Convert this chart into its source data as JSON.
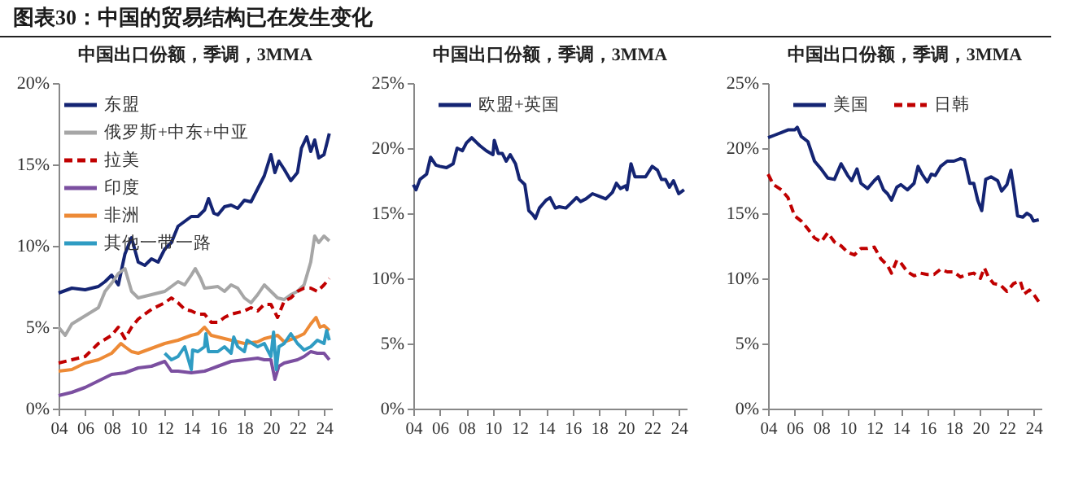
{
  "chart_data": [
    {
      "type": "line",
      "title": "中国出口份额，季调，3MMA",
      "annotations": [
        "图表30：中国的贸易结构已在发生变化"
      ],
      "xlim": [
        2004,
        2024.6
      ],
      "xticks": [
        {
          "value": 2004,
          "label": "04"
        },
        {
          "value": 2006,
          "label": "06"
        },
        {
          "value": 2008,
          "label": "08"
        },
        {
          "value": 2010,
          "label": "10"
        },
        {
          "value": 2012,
          "label": "12"
        },
        {
          "value": 2014,
          "label": "14"
        },
        {
          "value": 2016,
          "label": "16"
        },
        {
          "value": 2018,
          "label": "18"
        },
        {
          "value": 2020,
          "label": "20"
        },
        {
          "value": 2022,
          "label": "22"
        },
        {
          "value": 2024,
          "label": "24"
        }
      ],
      "ylim": [
        0,
        20
      ],
      "yticks": [
        {
          "value": 0,
          "label": "0%"
        },
        {
          "value": 5,
          "label": "5%"
        },
        {
          "value": 10,
          "label": "10%"
        },
        {
          "value": 15,
          "label": "15%"
        },
        {
          "value": 20,
          "label": "20%"
        }
      ],
      "legend": "top left",
      "grid": false,
      "series": [
        {
          "name": "东盟",
          "color": "#142473",
          "x": [
            2004,
            2005,
            2006,
            2007,
            2007.5,
            2008,
            2008.5,
            2009,
            2009.5,
            2010,
            2010.5,
            2011,
            2011.5,
            2012,
            2012.5,
            2013,
            2013.5,
            2014,
            2014.5,
            2015,
            2015.3,
            2015.7,
            2016,
            2016.5,
            2017,
            2017.5,
            2018,
            2018.5,
            2019,
            2019.5,
            2020,
            2020.3,
            2020.6,
            2021,
            2021.5,
            2022,
            2022.3,
            2022.7,
            2023,
            2023.3,
            2023.6,
            2024,
            2024.4
          ],
          "values": [
            7.1,
            7.4,
            7.3,
            7.5,
            7.8,
            8.2,
            7.6,
            9.5,
            10.5,
            9.0,
            8.8,
            9.2,
            9.0,
            9.8,
            10.2,
            11.2,
            11.5,
            11.8,
            11.8,
            12.2,
            12.9,
            12.0,
            11.9,
            12.4,
            12.5,
            12.3,
            12.8,
            12.7,
            13.5,
            14.3,
            15.6,
            14.5,
            15.2,
            14.7,
            14.0,
            14.5,
            16.0,
            16.7,
            15.8,
            16.5,
            15.4,
            15.6,
            16.9
          ]
        },
        {
          "name": "俄罗斯+中东+中亚",
          "color": "#a6a6a6",
          "x": [
            2004,
            2004.5,
            2005,
            2006,
            2007,
            2007.5,
            2008,
            2008.5,
            2009,
            2009.5,
            2010,
            2011,
            2012,
            2012.5,
            2013,
            2013.5,
            2014,
            2014.3,
            2014.7,
            2015,
            2016,
            2016.5,
            2017,
            2017.5,
            2018,
            2018.5,
            2019,
            2019.5,
            2020,
            2020.5,
            2021,
            2021.5,
            2022,
            2022.5,
            2023,
            2023.3,
            2023.6,
            2024,
            2024.4
          ],
          "values": [
            5.0,
            4.5,
            5.2,
            5.7,
            6.2,
            7.2,
            7.7,
            8.3,
            8.6,
            7.2,
            6.8,
            7.0,
            7.2,
            7.5,
            7.8,
            7.6,
            8.2,
            8.6,
            8.0,
            7.4,
            7.5,
            7.2,
            7.6,
            7.4,
            6.8,
            6.5,
            7.0,
            7.6,
            7.2,
            6.8,
            6.7,
            7.0,
            7.2,
            7.6,
            9.0,
            10.6,
            10.2,
            10.6,
            10.3
          ]
        },
        {
          "name": "拉美",
          "color": "#c00000",
          "line_style": "dashed",
          "x": [
            2004,
            2005,
            2006,
            2007,
            2008,
            2008.5,
            2009,
            2009.5,
            2010,
            2011,
            2012,
            2012.5,
            2013,
            2013.5,
            2014,
            2014.5,
            2015,
            2015.5,
            2016,
            2016.5,
            2017,
            2018,
            2018.5,
            2019,
            2019.5,
            2020,
            2020.5,
            2021,
            2021.5,
            2022,
            2022.5,
            2023,
            2023.5,
            2024,
            2024.4
          ],
          "values": [
            2.8,
            3.0,
            3.2,
            4.0,
            4.5,
            5.0,
            4.3,
            5.0,
            5.5,
            6.1,
            6.5,
            6.8,
            6.5,
            6.1,
            6.0,
            5.8,
            5.8,
            5.3,
            5.3,
            5.6,
            5.8,
            6.0,
            6.2,
            6.0,
            6.4,
            6.4,
            5.6,
            6.6,
            6.8,
            7.2,
            7.4,
            7.4,
            7.2,
            7.6,
            8.0
          ]
        },
        {
          "name": "印度",
          "color": "#7b4fa0",
          "x": [
            2004,
            2005,
            2006,
            2007,
            2008,
            2009,
            2010,
            2011,
            2012,
            2012.5,
            2013,
            2014,
            2015,
            2016,
            2017,
            2018,
            2019,
            2019.5,
            2020,
            2020.3,
            2020.6,
            2021,
            2022,
            2022.5,
            2023,
            2023.5,
            2024,
            2024.4
          ],
          "values": [
            0.8,
            1.0,
            1.3,
            1.7,
            2.1,
            2.2,
            2.5,
            2.6,
            2.9,
            2.3,
            2.3,
            2.2,
            2.3,
            2.6,
            2.9,
            3.0,
            3.1,
            3.0,
            3.0,
            1.8,
            2.6,
            2.8,
            3.0,
            3.2,
            3.5,
            3.4,
            3.4,
            3.0
          ]
        },
        {
          "name": "非洲",
          "color": "#ed8a36",
          "x": [
            2004,
            2005,
            2006,
            2007,
            2008,
            2008.7,
            2009,
            2009.5,
            2010,
            2011,
            2012,
            2013,
            2014,
            2014.5,
            2015,
            2015.5,
            2016,
            2017,
            2018,
            2019,
            2019.5,
            2020,
            2020.5,
            2021,
            2022,
            2022.5,
            2023,
            2023.4,
            2023.7,
            2024,
            2024.4
          ],
          "values": [
            2.3,
            2.4,
            2.8,
            3.0,
            3.4,
            4.0,
            3.8,
            3.5,
            3.4,
            3.7,
            4.0,
            4.2,
            4.5,
            4.6,
            5.0,
            4.5,
            4.4,
            4.2,
            4.0,
            4.1,
            4.3,
            4.4,
            4.5,
            4.1,
            4.4,
            4.6,
            5.2,
            5.6,
            5.0,
            5.1,
            4.8
          ]
        },
        {
          "name": "其他一带一路",
          "color": "#2f9cc3",
          "x": [
            2012,
            2012.5,
            2013,
            2013.5,
            2014,
            2014.1,
            2014.5,
            2015,
            2015.1,
            2015.3,
            2016,
            2016.5,
            2017,
            2017.2,
            2017.5,
            2018,
            2018.2,
            2019,
            2019.5,
            2020,
            2020.2,
            2020.4,
            2020.6,
            2021,
            2021.5,
            2022,
            2022.5,
            2023,
            2023.5,
            2024,
            2024.2,
            2024.4
          ],
          "values": [
            3.4,
            3.0,
            3.2,
            3.8,
            2.4,
            3.6,
            3.5,
            3.8,
            4.6,
            3.5,
            3.5,
            3.8,
            3.4,
            4.4,
            3.8,
            3.5,
            4.2,
            3.8,
            4.0,
            3.2,
            4.7,
            2.4,
            3.8,
            4.0,
            4.6,
            4.0,
            3.6,
            3.8,
            4.2,
            4.0,
            4.8,
            4.2
          ]
        }
      ]
    },
    {
      "type": "line",
      "title": "中国出口份额，季调，3MMA",
      "xlim": [
        2004,
        2024.6
      ],
      "xticks": [
        {
          "value": 2004,
          "label": "04"
        },
        {
          "value": 2006,
          "label": "06"
        },
        {
          "value": 2008,
          "label": "08"
        },
        {
          "value": 2010,
          "label": "10"
        },
        {
          "value": 2012,
          "label": "12"
        },
        {
          "value": 2014,
          "label": "14"
        },
        {
          "value": 2016,
          "label": "16"
        },
        {
          "value": 2018,
          "label": "18"
        },
        {
          "value": 2020,
          "label": "20"
        },
        {
          "value": 2022,
          "label": "22"
        },
        {
          "value": 2024,
          "label": "24"
        }
      ],
      "ylim": [
        0,
        25
      ],
      "yticks": [
        {
          "value": 0,
          "label": "0%"
        },
        {
          "value": 5,
          "label": "5%"
        },
        {
          "value": 10,
          "label": "10%"
        },
        {
          "value": 15,
          "label": "15%"
        },
        {
          "value": 20,
          "label": "20%"
        },
        {
          "value": 25,
          "label": "25%"
        }
      ],
      "legend": "top",
      "grid": false,
      "series": [
        {
          "name": "欧盟+英国",
          "color": "#142473",
          "x": [
            2004,
            2004.2,
            2004.5,
            2005,
            2005.3,
            2005.7,
            2006,
            2006.5,
            2007,
            2007.3,
            2007.7,
            2008,
            2008.4,
            2008.8,
            2009,
            2009.5,
            2010,
            2010.1,
            2010.4,
            2010.7,
            2011,
            2011.3,
            2011.7,
            2012,
            2012.4,
            2012.7,
            2013,
            2013.2,
            2013.5,
            2014,
            2014.3,
            2014.7,
            2015,
            2015.5,
            2016,
            2016.3,
            2016.6,
            2017,
            2017.5,
            2018,
            2018.5,
            2019,
            2019.3,
            2019.6,
            2020,
            2020.1,
            2020.4,
            2020.7,
            2021,
            2021.5,
            2022,
            2022.4,
            2022.7,
            2023,
            2023.3,
            2023.6,
            2024,
            2024.4
          ],
          "values": [
            17.2,
            16.8,
            17.6,
            18.0,
            19.3,
            18.7,
            18.6,
            18.5,
            18.8,
            20.0,
            19.8,
            20.4,
            20.8,
            20.4,
            20.2,
            19.8,
            19.5,
            20.6,
            19.6,
            19.6,
            19.0,
            19.5,
            18.8,
            17.6,
            17.2,
            15.2,
            14.9,
            14.6,
            15.4,
            16.0,
            16.2,
            15.4,
            15.5,
            15.4,
            15.9,
            16.2,
            15.9,
            16.1,
            16.5,
            16.3,
            16.1,
            16.6,
            17.3,
            16.9,
            17.1,
            16.8,
            18.8,
            17.8,
            17.8,
            17.8,
            18.6,
            18.3,
            17.6,
            17.6,
            17.0,
            17.5,
            16.5,
            16.8
          ]
        }
      ]
    },
    {
      "type": "line",
      "title": "中国出口份额，季调，3MMA",
      "xlim": [
        2004,
        2024.6
      ],
      "xticks": [
        {
          "value": 2004,
          "label": "04"
        },
        {
          "value": 2006,
          "label": "06"
        },
        {
          "value": 2008,
          "label": "08"
        },
        {
          "value": 2010,
          "label": "10"
        },
        {
          "value": 2012,
          "label": "12"
        },
        {
          "value": 2014,
          "label": "14"
        },
        {
          "value": 2016,
          "label": "16"
        },
        {
          "value": 2018,
          "label": "18"
        },
        {
          "value": 2020,
          "label": "20"
        },
        {
          "value": 2022,
          "label": "22"
        },
        {
          "value": 2024,
          "label": "24"
        }
      ],
      "ylim": [
        0,
        25
      ],
      "yticks": [
        {
          "value": 0,
          "label": "0%"
        },
        {
          "value": 5,
          "label": "5%"
        },
        {
          "value": 10,
          "label": "10%"
        },
        {
          "value": 15,
          "label": "15%"
        },
        {
          "value": 20,
          "label": "20%"
        },
        {
          "value": 25,
          "label": "25%"
        }
      ],
      "legend": "top",
      "grid": false,
      "series": [
        {
          "name": "美国",
          "color": "#142473",
          "x": [
            2004,
            2004.5,
            2005,
            2005.5,
            2006,
            2006.2,
            2006.5,
            2007,
            2007.5,
            2008,
            2008.5,
            2009,
            2009.5,
            2010,
            2010.3,
            2010.7,
            2011,
            2011.5,
            2012,
            2012.3,
            2012.7,
            2013,
            2013.3,
            2013.7,
            2014,
            2014.5,
            2015,
            2015.3,
            2015.6,
            2016,
            2016.3,
            2016.6,
            2017,
            2017.5,
            2018,
            2018.5,
            2018.8,
            2019.2,
            2019.5,
            2019.8,
            2020.1,
            2020.4,
            2020.8,
            2021.3,
            2021.6,
            2022,
            2022.3,
            2022.5,
            2022.8,
            2023.2,
            2023.5,
            2023.8,
            2024,
            2024.4
          ],
          "values": [
            20.8,
            21.0,
            21.2,
            21.4,
            21.4,
            21.6,
            20.9,
            20.5,
            19.0,
            18.4,
            17.7,
            17.6,
            18.8,
            17.9,
            17.5,
            18.4,
            17.3,
            16.9,
            17.5,
            17.8,
            16.8,
            16.5,
            16.0,
            17.0,
            17.2,
            16.8,
            17.3,
            18.6,
            18.0,
            17.4,
            18.0,
            17.9,
            18.6,
            19.0,
            19.0,
            19.2,
            19.1,
            17.3,
            17.3,
            16.0,
            15.2,
            17.6,
            17.8,
            17.5,
            16.7,
            17.2,
            18.3,
            17.0,
            14.8,
            14.7,
            15.0,
            14.8,
            14.4,
            14.5
          ]
        },
        {
          "name": "日韩",
          "color": "#c00000",
          "line_style": "dashed",
          "x": [
            2004,
            2004.4,
            2005,
            2005.5,
            2006,
            2006.5,
            2007,
            2007.5,
            2008,
            2008.5,
            2009,
            2009.5,
            2010,
            2010.5,
            2011,
            2011.5,
            2012,
            2012.5,
            2013,
            2013.3,
            2013.7,
            2014,
            2014.5,
            2015,
            2015.5,
            2016,
            2016.5,
            2017,
            2017.5,
            2018,
            2018.5,
            2019,
            2019.5,
            2020,
            2020.3,
            2020.6,
            2021,
            2021.5,
            2022,
            2022.5,
            2023,
            2023.3,
            2023.7,
            2024,
            2024.4
          ],
          "values": [
            18.0,
            17.2,
            16.8,
            16.2,
            14.8,
            14.4,
            13.8,
            13.1,
            12.8,
            13.5,
            12.8,
            12.5,
            12.0,
            11.8,
            12.3,
            12.3,
            12.4,
            11.5,
            11.0,
            10.4,
            11.4,
            11.2,
            10.5,
            10.2,
            10.4,
            10.3,
            10.3,
            10.7,
            10.5,
            10.5,
            10.1,
            10.3,
            10.4,
            10.0,
            10.8,
            10.1,
            9.6,
            9.5,
            9.0,
            9.6,
            9.8,
            8.8,
            9.1,
            8.8,
            8.2
          ]
        }
      ]
    }
  ]
}
